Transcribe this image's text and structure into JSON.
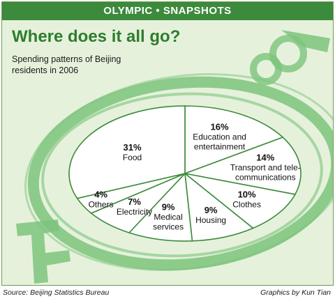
{
  "header": {
    "banner": "OLYMPIC • SNAPSHOTS"
  },
  "chart_data": {
    "type": "pie",
    "title": "Where does it all go?",
    "subtitle": "Spending patterns of Beijing residents in 2006",
    "slices": [
      {
        "label": "Education and entertainment",
        "lines": [
          "Education and",
          "entertainment"
        ],
        "percent": 16,
        "percent_label": "16%"
      },
      {
        "label": "Transport and telecommunications",
        "lines": [
          "Transport and tele-",
          "communications"
        ],
        "percent": 14,
        "percent_label": "14%"
      },
      {
        "label": "Clothes",
        "lines": [
          "Clothes"
        ],
        "percent": 10,
        "percent_label": "10%"
      },
      {
        "label": "Housing",
        "lines": [
          "Housing"
        ],
        "percent": 9,
        "percent_label": "9%"
      },
      {
        "label": "Medical services",
        "lines": [
          "Medical",
          "services"
        ],
        "percent": 9,
        "percent_label": "9%"
      },
      {
        "label": "Electricity",
        "lines": [
          "Electricity"
        ],
        "percent": 7,
        "percent_label": "7%"
      },
      {
        "label": "Others",
        "lines": [
          "Others"
        ],
        "percent": 4,
        "percent_label": "4%"
      },
      {
        "label": "Food",
        "lines": [
          "Food"
        ],
        "percent": 31,
        "percent_label": "31%"
      }
    ],
    "colors": {
      "slice_fill": "#ffffff",
      "divider": "#3c8a3c",
      "ring": "#7cc47c",
      "background": "#e6f1dc"
    }
  },
  "footer": {
    "source": "Source: Beijing Statistics Bureau",
    "credit": "Graphics by Kun Tian"
  }
}
